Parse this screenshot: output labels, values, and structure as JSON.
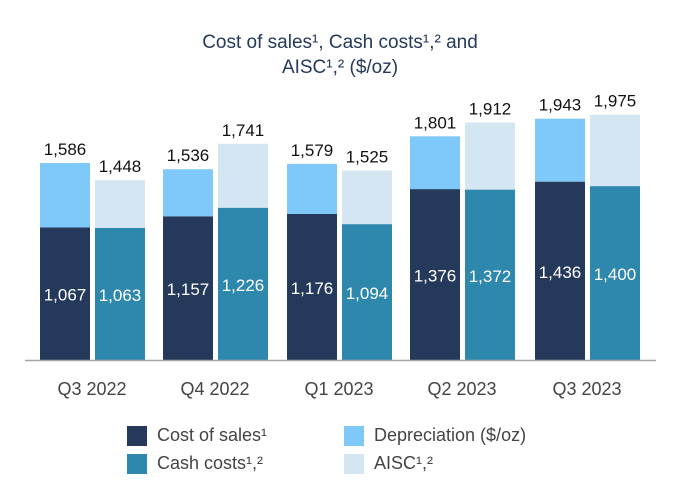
{
  "chart_data": {
    "type": "bar",
    "stacked": true,
    "title": [
      "Cost of sales¹, Cash costs¹,² and",
      "AISC¹,² ($/oz)"
    ],
    "categories": [
      "Q3 2022",
      "Q4 2022",
      "Q1 2023",
      "Q2 2023",
      "Q3 2023"
    ],
    "cost_of_sales": [
      1067,
      1157,
      1176,
      1376,
      1436
    ],
    "cost_of_sales_total_incl_depreciation": [
      1586,
      1536,
      1579,
      1801,
      1943
    ],
    "cash_costs": [
      1063,
      1226,
      1094,
      1372,
      1400
    ],
    "aisc": [
      1448,
      1741,
      1525,
      1912,
      1975
    ],
    "value_labels": {
      "cost_of_sales": [
        "1,067",
        "1,157",
        "1,176",
        "1,376",
        "1,436"
      ],
      "cost_of_sales_total": [
        "1,586",
        "1,536",
        "1,579",
        "1,801",
        "1,943"
      ],
      "cash_costs": [
        "1,063",
        "1,226",
        "1,094",
        "1,372",
        "1,400"
      ],
      "aisc": [
        "1,448",
        "1,741",
        "1,525",
        "1,912",
        "1,975"
      ]
    },
    "ylim": [
      0,
      2000
    ],
    "grid": false,
    "legend_placement": "bottom",
    "legend": [
      {
        "label": "Cost of sales¹",
        "color": "#253a5a"
      },
      {
        "label": "Depreciation ($/oz)",
        "color": "#7fc8fa"
      },
      {
        "label": "Cash costs¹,²",
        "color": "#2e87ad"
      },
      {
        "label": "AISC¹,²",
        "color": "#d3e6f1"
      }
    ]
  }
}
